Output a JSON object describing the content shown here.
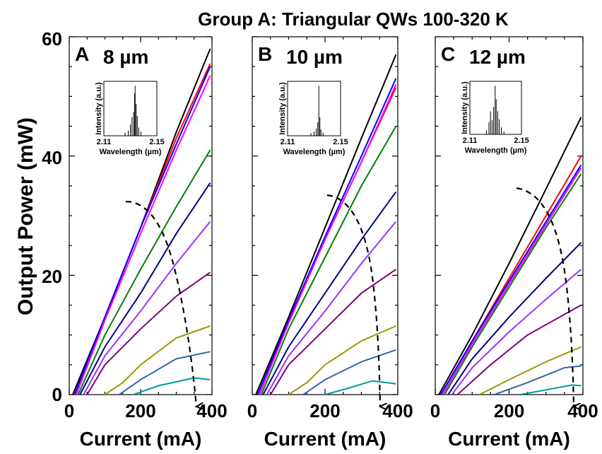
{
  "figure": {
    "title": "Group A: Triangular QWs 100-320 K",
    "ylabel": "Output Power (mW)",
    "y_ticks": [
      "0",
      "20",
      "40",
      "60"
    ]
  },
  "chart_data": [
    {
      "type": "line",
      "panel_label": "A",
      "width_label": "8 µm",
      "xlabel": "Current (mA)",
      "x_ticks": [
        "0",
        "200",
        "400"
      ],
      "xlim": [
        0,
        400
      ],
      "ylim": [
        0,
        60
      ],
      "arrow_direction": "increasing temperature, top to bottom",
      "series": [
        {
          "color": "#000000",
          "points": [
            [
              10,
              0
            ],
            [
              100,
              13
            ],
            [
              200,
              28
            ],
            [
              300,
              44
            ],
            [
              395,
              58
            ]
          ]
        },
        {
          "color": "#ff0000",
          "points": [
            [
              15,
              0
            ],
            [
              100,
              13
            ],
            [
              200,
              28
            ],
            [
              300,
              43
            ],
            [
              395,
              55.5
            ]
          ]
        },
        {
          "color": "#0000ff",
          "points": [
            [
              15,
              0
            ],
            [
              100,
              13
            ],
            [
              200,
              28
            ],
            [
              300,
              42
            ],
            [
              395,
              55
            ]
          ]
        },
        {
          "color": "#ff00ff",
          "points": [
            [
              20,
              0
            ],
            [
              100,
              12.5
            ],
            [
              200,
              27
            ],
            [
              300,
              41
            ],
            [
              395,
              53.5
            ]
          ]
        },
        {
          "color": "#008000",
          "points": [
            [
              25,
              0
            ],
            [
              100,
              10
            ],
            [
              200,
              21
            ],
            [
              300,
              31.5
            ],
            [
              395,
              41
            ]
          ]
        },
        {
          "color": "#000080",
          "points": [
            [
              30,
              0
            ],
            [
              100,
              8
            ],
            [
              200,
              17
            ],
            [
              300,
              27
            ],
            [
              395,
              35.5
            ]
          ]
        },
        {
          "color": "#9933ff",
          "points": [
            [
              40,
              0
            ],
            [
              100,
              6.5
            ],
            [
              200,
              14
            ],
            [
              300,
              22
            ],
            [
              395,
              29
            ]
          ]
        },
        {
          "color": "#800080",
          "points": [
            [
              50,
              0
            ],
            [
              100,
              5
            ],
            [
              200,
              11
            ],
            [
              300,
              16.5
            ],
            [
              395,
              20.5
            ]
          ]
        },
        {
          "color": "#999900",
          "points": [
            [
              100,
              0
            ],
            [
              150,
              2
            ],
            [
              200,
              5
            ],
            [
              300,
              9.5
            ],
            [
              395,
              11.5
            ]
          ]
        },
        {
          "color": "#3366aa",
          "points": [
            [
              140,
              0
            ],
            [
              200,
              2.5
            ],
            [
              300,
              6
            ],
            [
              395,
              7.2
            ]
          ]
        },
        {
          "color": "#009999",
          "points": [
            [
              180,
              0
            ],
            [
              250,
              1.5
            ],
            [
              350,
              2.8
            ],
            [
              395,
              2.5
            ]
          ]
        }
      ],
      "inset": {
        "xlabel": "Wavelength (µm)",
        "ylabel": "Intensity (a.u.)",
        "x_ticks": [
          "2.11",
          "2.15"
        ]
      }
    },
    {
      "type": "line",
      "panel_label": "B",
      "width_label": "10 µm",
      "xlabel": "Current (mA)",
      "x_ticks": [
        "0",
        "200",
        "400"
      ],
      "xlim": [
        0,
        400
      ],
      "ylim": [
        0,
        60
      ],
      "arrow_direction": "increasing temperature, top to bottom",
      "series": [
        {
          "color": "#000000",
          "points": [
            [
              10,
              0
            ],
            [
              100,
              13
            ],
            [
              200,
              28
            ],
            [
              300,
              43
            ],
            [
              395,
              57
            ]
          ]
        },
        {
          "color": "#ff0000",
          "points": [
            [
              15,
              0
            ],
            [
              100,
              12.5
            ],
            [
              200,
              26
            ],
            [
              300,
              39
            ],
            [
              395,
              51.5
            ]
          ]
        },
        {
          "color": "#0000ff",
          "points": [
            [
              15,
              0
            ],
            [
              100,
              12.5
            ],
            [
              200,
              26.5
            ],
            [
              300,
              40
            ],
            [
              395,
              53
            ]
          ]
        },
        {
          "color": "#ff00ff",
          "points": [
            [
              20,
              0
            ],
            [
              100,
              12
            ],
            [
              200,
              26
            ],
            [
              300,
              39
            ],
            [
              395,
              52
            ]
          ]
        },
        {
          "color": "#008000",
          "points": [
            [
              25,
              0
            ],
            [
              100,
              11
            ],
            [
              200,
              23
            ],
            [
              300,
              35
            ],
            [
              395,
              45
            ]
          ]
        },
        {
          "color": "#000080",
          "points": [
            [
              30,
              0
            ],
            [
              100,
              8
            ],
            [
              200,
              17
            ],
            [
              300,
              26
            ],
            [
              395,
              34
            ]
          ]
        },
        {
          "color": "#9933ff",
          "points": [
            [
              40,
              0
            ],
            [
              100,
              6.5
            ],
            [
              200,
              14
            ],
            [
              300,
              22
            ],
            [
              395,
              29
            ]
          ]
        },
        {
          "color": "#800080",
          "points": [
            [
              50,
              0
            ],
            [
              100,
              5
            ],
            [
              200,
              11
            ],
            [
              300,
              17
            ],
            [
              395,
              21
            ]
          ]
        },
        {
          "color": "#999900",
          "points": [
            [
              100,
              0
            ],
            [
              150,
              2
            ],
            [
              200,
              5
            ],
            [
              300,
              9
            ],
            [
              395,
              11.5
            ]
          ]
        },
        {
          "color": "#3366aa",
          "points": [
            [
              140,
              0
            ],
            [
              200,
              2.5
            ],
            [
              300,
              5.5
            ],
            [
              395,
              7.5
            ]
          ]
        },
        {
          "color": "#009999",
          "points": [
            [
              200,
              0
            ],
            [
              260,
              1
            ],
            [
              330,
              2.3
            ],
            [
              395,
              1.8
            ]
          ]
        }
      ],
      "inset": {
        "xlabel": "Wavelength (µm)",
        "ylabel": "Intensity (a.u.)",
        "x_ticks": [
          "2.11",
          "2.15"
        ]
      }
    },
    {
      "type": "line",
      "panel_label": "C",
      "width_label": "12 µm",
      "xlabel": "Current (mA)",
      "x_ticks": [
        "0",
        "200",
        "400"
      ],
      "xlim": [
        0,
        400
      ],
      "ylim": [
        0,
        60
      ],
      "arrow_direction": "increasing temperature, top to bottom",
      "series": [
        {
          "color": "#000000",
          "points": [
            [
              10,
              0
            ],
            [
              100,
              10
            ],
            [
              200,
              22
            ],
            [
              300,
              34.5
            ],
            [
              395,
              46.5
            ]
          ]
        },
        {
          "color": "#ff0000",
          "points": [
            [
              15,
              0
            ],
            [
              100,
              9
            ],
            [
              200,
              19.5
            ],
            [
              300,
              30
            ],
            [
              395,
              40
            ]
          ]
        },
        {
          "color": "#0000ff",
          "points": [
            [
              15,
              0
            ],
            [
              100,
              9
            ],
            [
              200,
              19
            ],
            [
              300,
              29
            ],
            [
              395,
              38.5
            ]
          ]
        },
        {
          "color": "#ff00ff",
          "points": [
            [
              20,
              0
            ],
            [
              100,
              8.5
            ],
            [
              200,
              18.5
            ],
            [
              300,
              28.5
            ],
            [
              395,
              38
            ]
          ]
        },
        {
          "color": "#008000",
          "points": [
            [
              25,
              0
            ],
            [
              100,
              8
            ],
            [
              200,
              18
            ],
            [
              300,
              28
            ],
            [
              395,
              37
            ]
          ]
        },
        {
          "color": "#000080",
          "points": [
            [
              35,
              0
            ],
            [
              100,
              6
            ],
            [
              200,
              13
            ],
            [
              300,
              19.5
            ],
            [
              395,
              25.5
            ]
          ]
        },
        {
          "color": "#9933ff",
          "points": [
            [
              45,
              0
            ],
            [
              100,
              4.5
            ],
            [
              200,
              10.5
            ],
            [
              300,
              16
            ],
            [
              395,
              21
            ]
          ]
        },
        {
          "color": "#800080",
          "points": [
            [
              60,
              0
            ],
            [
              150,
              5
            ],
            [
              250,
              10
            ],
            [
              395,
              15
            ]
          ]
        },
        {
          "color": "#999900",
          "points": [
            [
              120,
              0
            ],
            [
              200,
              2.5
            ],
            [
              300,
              5.5
            ],
            [
              395,
              8
            ]
          ]
        },
        {
          "color": "#3366aa",
          "points": [
            [
              160,
              0
            ],
            [
              250,
              2
            ],
            [
              350,
              4.5
            ],
            [
              395,
              4.8
            ]
          ]
        },
        {
          "color": "#009999",
          "points": [
            [
              230,
              0
            ],
            [
              300,
              0.8
            ],
            [
              370,
              1.6
            ],
            [
              395,
              1.5
            ]
          ]
        }
      ],
      "inset": {
        "xlabel": "Wavelength (µm)",
        "ylabel": "Intensity (a.u.)",
        "x_ticks": [
          "2.11",
          "2.15"
        ]
      }
    }
  ]
}
